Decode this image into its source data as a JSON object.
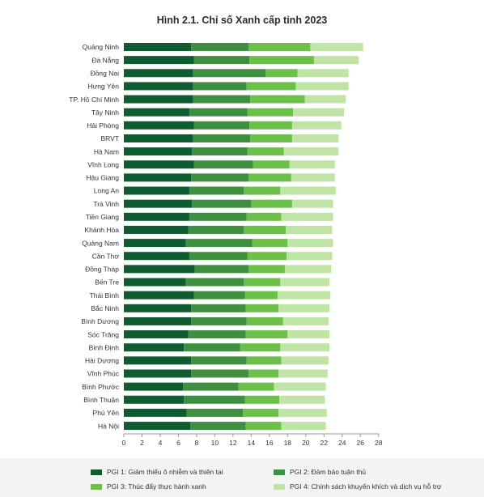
{
  "title": "Hình 2.1. Chỉ số Xanh cấp tỉnh 2023",
  "colors": {
    "pgi1": "#0f5c30",
    "pgi2": "#3f8f40",
    "pgi3": "#6cc04a",
    "pgi4": "#bfe4a6"
  },
  "legend": {
    "pgi1": "PGI 1: Giảm thiểu ô nhiễm và thiên tai",
    "pgi2": "PGI 2: Đảm bảo tuân thủ",
    "pgi3": "PGI 3: Thúc đẩy thực hành xanh",
    "pgi4": "PGI 4: Chính sách khuyến khích và dịch vụ hỗ trợ"
  },
  "chart_data": {
    "type": "bar",
    "orientation": "horizontal",
    "stacked": true,
    "title": "Hình 2.1. Chỉ số Xanh cấp tỉnh 2023",
    "xlim": [
      0,
      28
    ],
    "xticks": [
      0,
      2,
      4,
      6,
      8,
      10,
      12,
      14,
      16,
      18,
      20,
      22,
      24,
      26,
      28
    ],
    "grid": false,
    "legend_position": "bottom",
    "categories": [
      "Quảng Ninh",
      "Đà Nẵng",
      "Đồng Nai",
      "Hưng Yên",
      "TP. Hồ Chí Minh",
      "Tây Ninh",
      "Hải Phòng",
      "BRVT",
      "Hà Nam",
      "Vĩnh Long",
      "Hậu Giang",
      "Long An",
      "Trà Vinh",
      "Tiền Giang",
      "Khánh Hòa",
      "Quảng Nam",
      "Cần Thơ",
      "Đồng Tháp",
      "Bến Tre",
      "Thái Bình",
      "Bắc Ninh",
      "Bình Dương",
      "Sóc Trăng",
      "Bình Định",
      "Hải Dương",
      "Vĩnh Phúc",
      "Bình Phước",
      "Bình Thuận",
      "Phú Yên",
      "Hà Nội"
    ],
    "series": [
      {
        "name": "PGI 1: Giảm thiểu ô nhiễm và thiên tai",
        "values": [
          7.4,
          7.7,
          7.6,
          7.6,
          7.6,
          7.2,
          7.7,
          7.6,
          7.5,
          7.7,
          7.4,
          7.2,
          7.5,
          7.2,
          7.1,
          6.8,
          7.2,
          7.8,
          6.8,
          7.7,
          7.4,
          7.4,
          7.1,
          6.6,
          7.4,
          7.4,
          6.5,
          6.6,
          6.9,
          7.3
        ]
      },
      {
        "name": "PGI 2: Đảm bảo tuân thủ",
        "values": [
          6.3,
          6.1,
          8.0,
          5.9,
          6.3,
          6.4,
          6.1,
          6.3,
          6.1,
          6.5,
          6.3,
          6.0,
          6.5,
          6.3,
          6.1,
          7.3,
          6.4,
          5.9,
          6.4,
          5.6,
          6.0,
          6.1,
          6.3,
          6.2,
          6.1,
          6.3,
          6.1,
          6.7,
          6.2,
          6.1
        ]
      },
      {
        "name": "PGI 3: Thúc đẩy thực hành xanh",
        "values": [
          6.8,
          7.1,
          3.5,
          5.4,
          6.0,
          5.0,
          4.7,
          4.6,
          4.0,
          4.0,
          4.7,
          4.0,
          4.5,
          3.8,
          4.6,
          3.9,
          4.3,
          4.0,
          4.0,
          3.6,
          3.6,
          4.0,
          4.6,
          4.4,
          3.8,
          3.3,
          3.9,
          3.8,
          3.9,
          3.9
        ]
      },
      {
        "name": "PGI 4: Chính sách khuyến khích và dịch vụ hỗ trợ",
        "values": [
          5.8,
          4.9,
          5.6,
          5.8,
          4.5,
          5.6,
          5.4,
          5.1,
          6.0,
          5.0,
          4.8,
          6.1,
          4.5,
          5.7,
          5.1,
          5.0,
          5.0,
          5.1,
          5.4,
          5.8,
          5.6,
          5.0,
          4.6,
          5.4,
          5.2,
          5.4,
          5.7,
          5.0,
          5.3,
          4.9
        ]
      }
    ]
  }
}
